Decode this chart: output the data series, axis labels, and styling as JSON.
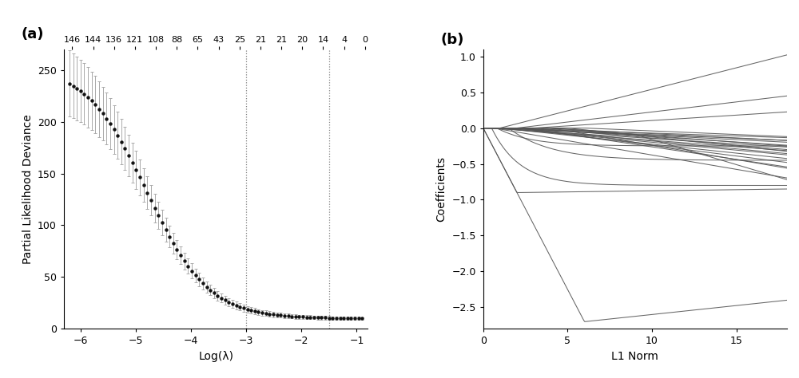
{
  "panel_a": {
    "title_label": "(a)",
    "xlabel": "Log(λ)",
    "ylabel": "Partial Likelihood Deviance",
    "top_labels": [
      "146",
      "144",
      "136",
      "121",
      "108",
      "88",
      "65",
      "43",
      "25",
      "21",
      "21",
      "20",
      "14",
      "4",
      "0"
    ],
    "vline1": -3.0,
    "vline2": -1.5,
    "xlim": [
      -6.3,
      -0.8
    ],
    "ylim": [
      0,
      270
    ],
    "yticks": [
      0,
      50,
      100,
      150,
      200,
      250
    ],
    "xticks": [
      -6,
      -5,
      -4,
      -3,
      -2,
      -1
    ],
    "dot_color": "#111111",
    "err_color": "#aaaaaa",
    "bg_color": "#ffffff"
  },
  "panel_b": {
    "title_label": "(b)",
    "xlabel": "L1 Norm",
    "ylabel": "Coefficients",
    "xlim": [
      0,
      18
    ],
    "ylim": [
      -2.8,
      1.1
    ],
    "xticks": [
      0,
      5,
      10,
      15
    ],
    "yticks": [
      -2.5,
      -2.0,
      -1.5,
      -1.0,
      -0.5,
      0.0,
      0.5,
      1.0
    ],
    "line_color": "#555555",
    "bg_color": "#ffffff"
  }
}
